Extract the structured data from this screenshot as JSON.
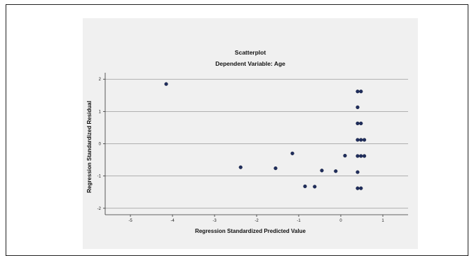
{
  "chart_data": {
    "type": "scatter",
    "title": "Scatterplot",
    "subtitle": "Dependent Variable: Age",
    "xlabel": "Regression Standardized Predicted Value",
    "ylabel": "Regression Standardized Residual",
    "xlim": [
      -5.6,
      1.6
    ],
    "ylim": [
      -2.2,
      2.2
    ],
    "xticks": [
      -5,
      -4,
      -3,
      -2,
      -1,
      0,
      1
    ],
    "yticks": [
      -2,
      -1,
      0,
      1,
      2
    ],
    "xtick_labels": [
      "-5",
      "-4",
      "-3",
      "-2",
      "-1",
      "0",
      "1"
    ],
    "ytick_labels": [
      "-2",
      "-1",
      "0",
      "1",
      "2"
    ],
    "grid": "horizontal",
    "point_color": "#1f2d5c",
    "points": [
      {
        "x": -4.15,
        "y": 1.85
      },
      {
        "x": -2.38,
        "y": -0.73
      },
      {
        "x": -1.55,
        "y": -0.76
      },
      {
        "x": -1.15,
        "y": -0.3
      },
      {
        "x": -0.85,
        "y": -1.32
      },
      {
        "x": -0.62,
        "y": -1.33
      },
      {
        "x": -0.45,
        "y": -0.83
      },
      {
        "x": -0.12,
        "y": -0.85
      },
      {
        "x": 0.1,
        "y": -0.37
      },
      {
        "x": 0.4,
        "y": 1.62
      },
      {
        "x": 0.48,
        "y": 1.62
      },
      {
        "x": 0.4,
        "y": 1.13
      },
      {
        "x": 0.4,
        "y": 0.63
      },
      {
        "x": 0.48,
        "y": 0.63
      },
      {
        "x": 0.4,
        "y": 0.12
      },
      {
        "x": 0.48,
        "y": 0.12
      },
      {
        "x": 0.56,
        "y": 0.12
      },
      {
        "x": 0.4,
        "y": -0.38
      },
      {
        "x": 0.48,
        "y": -0.38
      },
      {
        "x": 0.56,
        "y": -0.38
      },
      {
        "x": 0.4,
        "y": -0.88
      },
      {
        "x": 0.4,
        "y": -1.38
      },
      {
        "x": 0.48,
        "y": -1.38
      }
    ]
  }
}
